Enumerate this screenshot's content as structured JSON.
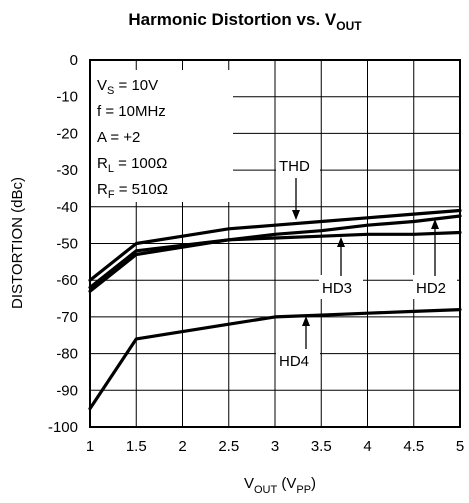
{
  "chart_data": {
    "type": "line",
    "title": {
      "main": "Harmonic Distortion vs. V",
      "sub": "OUT"
    },
    "xlabel": {
      "main": "V",
      "sub1": "OUT",
      "mid": " (V",
      "sub2": "PP",
      "end": ")"
    },
    "ylabel": "DISTORTION (dBc)",
    "xlim": [
      1,
      5
    ],
    "ylim": [
      -100,
      0
    ],
    "x_ticks": [
      "1",
      "1.5",
      "2",
      "2.5",
      "3",
      "3.5",
      "4",
      "4.5",
      "5"
    ],
    "y_ticks": [
      "0",
      "-10",
      "-20",
      "-30",
      "-40",
      "-50",
      "-60",
      "-70",
      "-80",
      "-90",
      "-100"
    ],
    "grid": true,
    "conditions": [
      {
        "main": "V",
        "sub": "S",
        "rest": " = 10V"
      },
      {
        "main": "f = 10MHz",
        "sub": "",
        "rest": ""
      },
      {
        "main": "A = +2",
        "sub": "",
        "rest": ""
      },
      {
        "main": "R",
        "sub": "L",
        "rest": " = 100Ω"
      },
      {
        "main": "R",
        "sub": "F",
        "rest": " = 510Ω"
      }
    ],
    "series": [
      {
        "name": "THD",
        "x": [
          1,
          1.5,
          2,
          2.5,
          3,
          3.5,
          4,
          4.5,
          5
        ],
        "y": [
          -60,
          -50,
          -48,
          -46,
          -45,
          -44,
          -43,
          -42,
          -41
        ]
      },
      {
        "name": "HD2",
        "x": [
          1,
          1.5,
          2,
          2.5,
          3,
          3.5,
          4,
          4.5,
          5
        ],
        "y": [
          -63,
          -53,
          -51,
          -49,
          -48.5,
          -48,
          -47.5,
          -47.5,
          -47
        ]
      },
      {
        "name": "HD3",
        "x": [
          1,
          1.5,
          2,
          2.5,
          3,
          3.5,
          4,
          4.5,
          5
        ],
        "y": [
          -62,
          -52,
          -50.5,
          -49,
          -47.5,
          -46.5,
          -45,
          -44,
          -42.5
        ]
      },
      {
        "name": "HD4",
        "x": [
          1,
          1.5,
          2,
          2.5,
          3,
          3.5,
          4,
          4.5,
          5
        ],
        "y": [
          -95,
          -76,
          -74,
          -72,
          -70,
          -69.5,
          -69,
          -68.5,
          -68
        ]
      }
    ],
    "annotations": [
      "THD",
      "HD3",
      "HD2",
      "HD4"
    ]
  }
}
